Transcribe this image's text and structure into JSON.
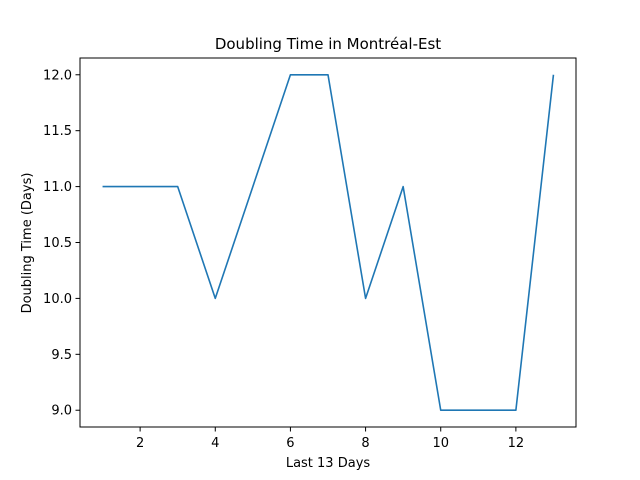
{
  "chart_data": {
    "type": "line",
    "title": "Doubling Time in  Montréal-Est",
    "xlabel": "Last 13 Days",
    "ylabel": "Doubling Time (Days)",
    "x": [
      1,
      2,
      3,
      4,
      5,
      6,
      7,
      8,
      9,
      10,
      11,
      12,
      13
    ],
    "series": [
      {
        "values": [
          11.0,
          11.0,
          11.0,
          10.0,
          11.0,
          12.0,
          12.0,
          10.0,
          11.0,
          9.0,
          9.0,
          9.0,
          12.0
        ]
      }
    ],
    "xlim": [
      0.4,
      13.6
    ],
    "ylim": [
      8.85,
      12.15
    ],
    "xticks": [
      2,
      4,
      6,
      8,
      10,
      12
    ],
    "xtick_labels": [
      "2",
      "4",
      "6",
      "8",
      "10",
      "12"
    ],
    "yticks": [
      9.0,
      9.5,
      10.0,
      10.5,
      11.0,
      11.5,
      12.0
    ],
    "ytick_labels": [
      "9.0",
      "9.5",
      "10.0",
      "10.5",
      "11.0",
      "11.5",
      "12.0"
    ],
    "grid": false,
    "line_color": "#1f77b4"
  }
}
